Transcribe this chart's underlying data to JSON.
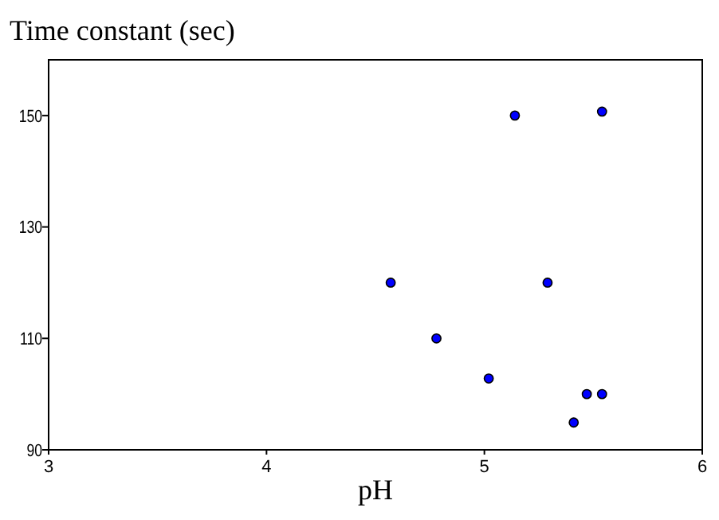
{
  "chart_data": {
    "type": "scatter",
    "ylabel": "Time constant (sec)",
    "xlabel": "pH",
    "x": [
      5.14,
      5.54,
      4.57,
      4.78,
      5.02,
      5.29,
      5.47,
      5.54,
      5.41
    ],
    "series": [
      {
        "color": "#0000ff",
        "values": [
          150,
          150.7,
          120,
          110,
          102.8,
          120,
          100,
          100,
          94.9
        ]
      }
    ],
    "xlim": [
      3,
      6
    ],
    "xticks": [
      3,
      4,
      5,
      6
    ],
    "ylim": [
      90,
      160
    ],
    "yticks": [
      90,
      110,
      130,
      150
    ],
    "grid": false,
    "marker": "circle"
  }
}
